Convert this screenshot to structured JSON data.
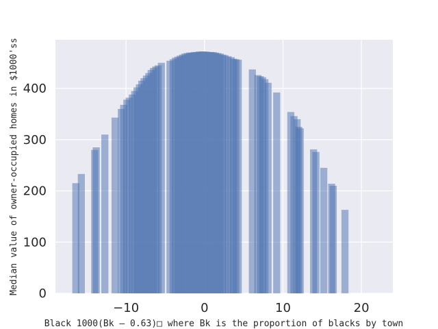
{
  "chart_data": {
    "type": "bar",
    "xlabel": "Black 1000(Bk — 0.63)□ where Bk is the proportion of blacks by town",
    "ylabel": "Median value of owner-occupied homes in $1000'ss",
    "xlim": [
      -19,
      24
    ],
    "ylim": [
      0,
      495
    ],
    "xticks": [
      -10,
      0,
      10,
      20
    ],
    "yticks": [
      0,
      100,
      200,
      300,
      400
    ],
    "grid": true,
    "bar_width": 0.9,
    "bar_color": "#4c72b0",
    "bar_opacity": 0.5,
    "background_color": "#eaeaf2",
    "x": [
      -16.4,
      -15.7,
      -14,
      -13.8,
      -12.7,
      -11.4,
      -10.6,
      -10.3,
      -9.9,
      -9.6,
      -9.2,
      -8.9,
      -8.6,
      -8.3,
      -8.0,
      -7.7,
      -7.4,
      -7.1,
      -6.8,
      -6.5,
      -6.2,
      -5.9,
      -5.5,
      -4.4,
      -4.0,
      -3.7,
      -3.4,
      -3.1,
      -2.8,
      -2.5,
      -2.2,
      -1.9,
      -1.6,
      -1.3,
      -1.0,
      -0.7,
      -0.4,
      -0.1,
      0.2,
      0.5,
      0.8,
      1.1,
      1.4,
      1.7,
      2.0,
      2.3,
      2.6,
      3.0,
      3.4,
      3.7,
      4.0,
      4.3,
      6.1,
      6.8,
      7.1,
      7.4,
      7.7,
      8.1,
      9.2,
      11.0,
      11.4,
      11.8,
      12.0,
      12.2,
      13.9,
      14.2,
      15.2,
      16.2,
      16.4,
      17.9
    ],
    "values": [
      215,
      233,
      280,
      285,
      310,
      343,
      360,
      368,
      378,
      382,
      388,
      395,
      402,
      408,
      415,
      420,
      425,
      430,
      436,
      440,
      443,
      445,
      450,
      454,
      457,
      460,
      462,
      464,
      466,
      468,
      469,
      470,
      470,
      471,
      471,
      472,
      472,
      472,
      472,
      471,
      471,
      471,
      470,
      469,
      468,
      466,
      465,
      463,
      461,
      458,
      457,
      456,
      437,
      426,
      424,
      422,
      418,
      411,
      392,
      354,
      346,
      340,
      325,
      322,
      281,
      276,
      245,
      214,
      210,
      163
    ]
  }
}
